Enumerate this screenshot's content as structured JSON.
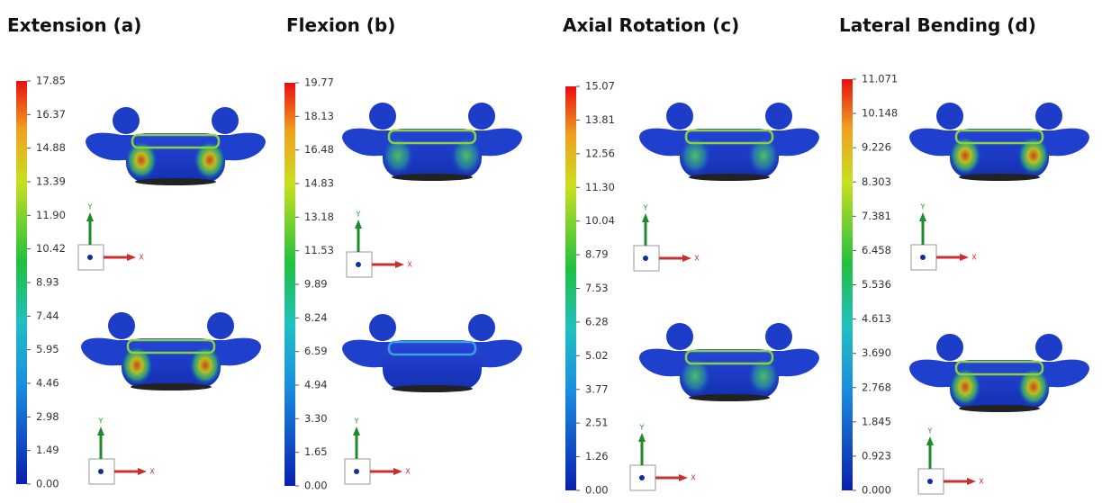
{
  "panels": [
    {
      "title": "Extension (a)",
      "scale": [
        "17.85",
        "16.37",
        "14.88",
        "13.39",
        "11.90",
        "10.42",
        "8.93",
        "7.44",
        "5.95",
        "4.46",
        "2.98",
        "1.49",
        "0.00"
      ]
    },
    {
      "title": "Flexion (b)",
      "scale": [
        "19.77",
        "18.13",
        "16.48",
        "14.83",
        "13.18",
        "11.53",
        "9.89",
        "8.24",
        "6.59",
        "4.94",
        "3.30",
        "1.65",
        "0.00"
      ]
    },
    {
      "title": "Axial Rotation (c)",
      "scale": [
        "15.07",
        "13.81",
        "12.56",
        "11.30",
        "10.04",
        "8.79",
        "7.53",
        "6.28",
        "5.02",
        "3.77",
        "2.51",
        "1.26",
        "0.00"
      ]
    },
    {
      "title": "Lateral Bending (d)",
      "scale": [
        "11.071",
        "10.148",
        "9.226",
        "8.303",
        "7.381",
        "6.458",
        "5.536",
        "4.613",
        "3.690",
        "2.768",
        "1.845",
        "0.923",
        "0.000"
      ]
    }
  ],
  "axis_labels": {
    "x": "X",
    "y": "Y"
  }
}
